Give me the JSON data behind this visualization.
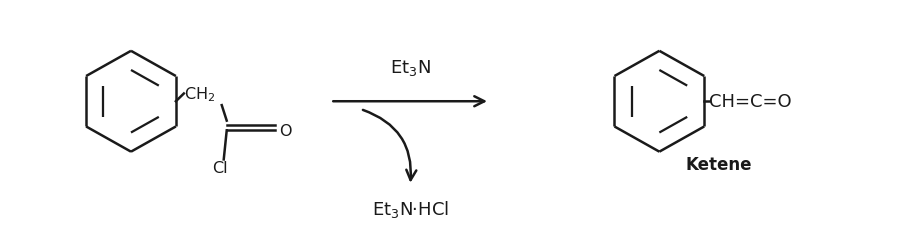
{
  "background_color": "#ffffff",
  "line_color": "#1a1a1a",
  "line_width": 1.8,
  "font_color": "#1a1a1a",
  "reagent_text": "Et$_3$N",
  "product_label_text": "Ketene",
  "byproduct_text": "Et$_3$N·HCl",
  "reactant_ch2_label": "CH$_2$",
  "reactant_o_label": "O",
  "reactant_cl_label": "Cl",
  "product_ch_label": "CH=C=O",
  "fig_width": 9.03,
  "fig_height": 2.26,
  "dpi": 100
}
